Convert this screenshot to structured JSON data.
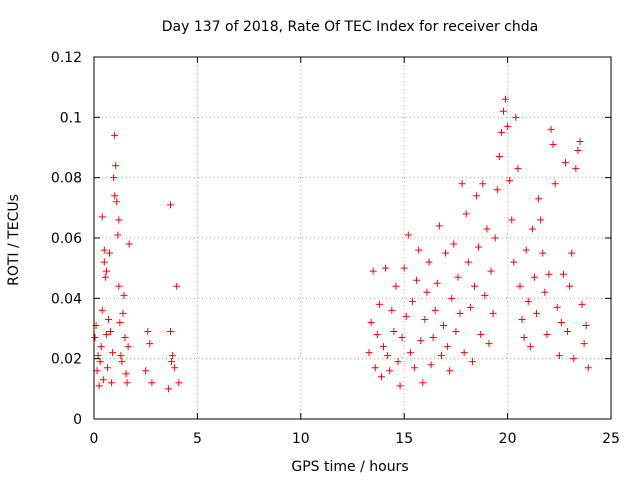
{
  "chart_data": {
    "type": "scatter",
    "title": "Day 137 of 2018, Rate Of TEC Index for receiver chda",
    "xlabel": "GPS time / hours",
    "ylabel": "ROTI / TECUs",
    "xlim": [
      0,
      25
    ],
    "ylim": [
      0,
      0.12
    ],
    "xticks": [
      "0",
      "5",
      "10",
      "15",
      "20",
      "25"
    ],
    "yticks": [
      "0",
      "0.02",
      "0.04",
      "0.06",
      "0.08",
      "0.1",
      "0.12"
    ],
    "grid": true,
    "marker": "+",
    "series_color": "#ff0000",
    "points": [
      [
        0.05,
        0.027
      ],
      [
        0.1,
        0.031
      ],
      [
        0.15,
        0.016
      ],
      [
        0.2,
        0.021
      ],
      [
        0.25,
        0.011
      ],
      [
        0.3,
        0.019
      ],
      [
        0.35,
        0.024
      ],
      [
        0.4,
        0.036
      ],
      [
        0.45,
        0.013
      ],
      [
        0.5,
        0.056
      ],
      [
        0.55,
        0.047
      ],
      [
        0.6,
        0.028
      ],
      [
        0.65,
        0.017
      ],
      [
        0.7,
        0.033
      ],
      [
        0.75,
        0.055
      ],
      [
        0.8,
        0.029
      ],
      [
        0.85,
        0.012
      ],
      [
        0.9,
        0.022
      ],
      [
        0.95,
        0.08
      ],
      [
        1.0,
        0.094
      ],
      [
        1.05,
        0.084
      ],
      [
        1.1,
        0.072
      ],
      [
        1.15,
        0.061
      ],
      [
        1.2,
        0.044
      ],
      [
        1.25,
        0.032
      ],
      [
        1.3,
        0.021
      ],
      [
        1.35,
        0.019
      ],
      [
        1.4,
        0.035
      ],
      [
        1.45,
        0.041
      ],
      [
        1.5,
        0.027
      ],
      [
        1.55,
        0.015
      ],
      [
        1.6,
        0.012
      ],
      [
        1.65,
        0.024
      ],
      [
        1.7,
        0.058
      ],
      [
        0.4,
        0.067
      ],
      [
        0.5,
        0.052
      ],
      [
        0.6,
        0.049
      ],
      [
        1.0,
        0.074
      ],
      [
        1.2,
        0.066
      ],
      [
        2.6,
        0.029
      ],
      [
        2.7,
        0.025
      ],
      [
        2.8,
        0.012
      ],
      [
        2.5,
        0.016
      ],
      [
        3.7,
        0.071
      ],
      [
        3.7,
        0.029
      ],
      [
        3.8,
        0.021
      ],
      [
        3.9,
        0.017
      ],
      [
        4.0,
        0.044
      ],
      [
        4.1,
        0.012
      ],
      [
        3.6,
        0.01
      ],
      [
        3.75,
        0.019
      ],
      [
        13.3,
        0.022
      ],
      [
        13.4,
        0.032
      ],
      [
        13.5,
        0.049
      ],
      [
        13.6,
        0.017
      ],
      [
        13.7,
        0.028
      ],
      [
        13.8,
        0.038
      ],
      [
        13.9,
        0.014
      ],
      [
        14.0,
        0.024
      ],
      [
        14.1,
        0.05
      ],
      [
        14.2,
        0.021
      ],
      [
        14.3,
        0.016
      ],
      [
        14.4,
        0.036
      ],
      [
        14.5,
        0.029
      ],
      [
        14.6,
        0.044
      ],
      [
        14.7,
        0.019
      ],
      [
        14.8,
        0.011
      ],
      [
        14.9,
        0.027
      ],
      [
        15.0,
        0.05
      ],
      [
        15.1,
        0.034
      ],
      [
        15.2,
        0.061
      ],
      [
        15.3,
        0.022
      ],
      [
        15.4,
        0.039
      ],
      [
        15.5,
        0.017
      ],
      [
        15.6,
        0.046
      ],
      [
        15.7,
        0.056
      ],
      [
        15.8,
        0.026
      ],
      [
        15.9,
        0.012
      ],
      [
        16.0,
        0.033
      ],
      [
        16.1,
        0.042
      ],
      [
        16.2,
        0.052
      ],
      [
        16.3,
        0.018
      ],
      [
        16.4,
        0.027
      ],
      [
        16.5,
        0.036
      ],
      [
        16.6,
        0.045
      ],
      [
        16.7,
        0.064
      ],
      [
        16.8,
        0.021
      ],
      [
        16.9,
        0.031
      ],
      [
        17.0,
        0.055
      ],
      [
        17.1,
        0.024
      ],
      [
        17.2,
        0.016
      ],
      [
        17.3,
        0.04
      ],
      [
        17.4,
        0.058
      ],
      [
        17.5,
        0.029
      ],
      [
        17.6,
        0.047
      ],
      [
        17.7,
        0.035
      ],
      [
        17.8,
        0.078
      ],
      [
        17.9,
        0.022
      ],
      [
        18.0,
        0.068
      ],
      [
        18.1,
        0.052
      ],
      [
        18.2,
        0.037
      ],
      [
        18.3,
        0.019
      ],
      [
        18.4,
        0.044
      ],
      [
        18.5,
        0.074
      ],
      [
        18.6,
        0.057
      ],
      [
        18.7,
        0.028
      ],
      [
        18.8,
        0.078
      ],
      [
        18.9,
        0.041
      ],
      [
        19.0,
        0.063
      ],
      [
        19.1,
        0.025
      ],
      [
        19.2,
        0.049
      ],
      [
        19.3,
        0.035
      ],
      [
        19.4,
        0.06
      ],
      [
        19.5,
        0.076
      ],
      [
        19.6,
        0.087
      ],
      [
        19.7,
        0.095
      ],
      [
        19.8,
        0.102
      ],
      [
        19.9,
        0.106
      ],
      [
        20.0,
        0.097
      ],
      [
        20.1,
        0.079
      ],
      [
        20.2,
        0.066
      ],
      [
        20.3,
        0.052
      ],
      [
        20.4,
        0.1
      ],
      [
        20.5,
        0.083
      ],
      [
        20.6,
        0.044
      ],
      [
        20.7,
        0.033
      ],
      [
        20.8,
        0.027
      ],
      [
        20.9,
        0.056
      ],
      [
        21.0,
        0.039
      ],
      [
        21.1,
        0.024
      ],
      [
        21.2,
        0.063
      ],
      [
        21.3,
        0.047
      ],
      [
        21.4,
        0.035
      ],
      [
        21.5,
        0.073
      ],
      [
        21.6,
        0.066
      ],
      [
        21.7,
        0.055
      ],
      [
        21.8,
        0.042
      ],
      [
        21.9,
        0.028
      ],
      [
        22.0,
        0.048
      ],
      [
        22.1,
        0.096
      ],
      [
        22.2,
        0.091
      ],
      [
        22.3,
        0.078
      ],
      [
        22.4,
        0.037
      ],
      [
        22.5,
        0.021
      ],
      [
        22.6,
        0.032
      ],
      [
        22.7,
        0.048
      ],
      [
        22.8,
        0.085
      ],
      [
        22.9,
        0.029
      ],
      [
        23.0,
        0.044
      ],
      [
        23.1,
        0.055
      ],
      [
        23.2,
        0.02
      ],
      [
        23.3,
        0.083
      ],
      [
        23.4,
        0.089
      ],
      [
        23.5,
        0.092
      ],
      [
        23.6,
        0.038
      ],
      [
        23.7,
        0.025
      ],
      [
        23.8,
        0.031
      ],
      [
        23.9,
        0.017
      ]
    ]
  }
}
